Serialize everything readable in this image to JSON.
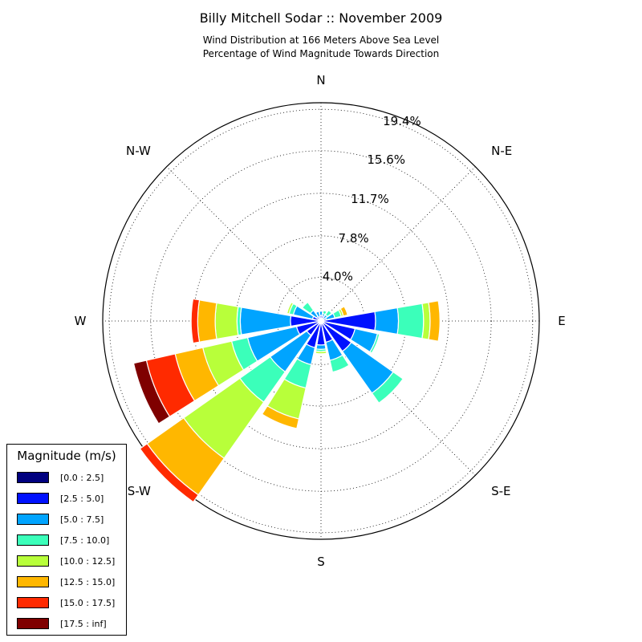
{
  "chart_data": {
    "type": "windrose",
    "title": "Billy Mitchell Sodar :: November 2009",
    "subtitle_lines": [
      "Wind Distribution at 166 Meters Above Sea Level",
      "Percentage of Wind Magnitude Towards Direction"
    ],
    "directions": [
      "N",
      "N-E",
      "E",
      "S-E",
      "S",
      "S-W",
      "W",
      "N-W"
    ],
    "ring_labels": [
      "4.0%",
      "7.8%",
      "11.7%",
      "15.6%",
      "19.4%"
    ],
    "rmax": 20.0,
    "legend_title": "Magnitude (m/s)",
    "bins": [
      {
        "label": "[0.0 : 2.5]",
        "color": "#00007f"
      },
      {
        "label": "[2.5 : 5.0]",
        "color": "#0011ff"
      },
      {
        "label": "[5.0 : 7.5]",
        "color": "#00a4ff"
      },
      {
        "label": "[7.5 : 10.0]",
        "color": "#3bffba"
      },
      {
        "label": "[10.0 : 12.5]",
        "color": "#b8ff3a"
      },
      {
        "label": "[12.5 : 15.0]",
        "color": "#ffb700"
      },
      {
        "label": "[15.0 : 17.5]",
        "color": "#ff2a00"
      },
      {
        "label": "[17.5 : inf]",
        "color": "#7f0000"
      }
    ],
    "sectors": [
      {
        "direction_deg": 0.0,
        "values": [
          0.0,
          0.5,
          0.4,
          0.0,
          0.0,
          0.0,
          0.0,
          0.0
        ]
      },
      {
        "direction_deg": 22.5,
        "values": [
          0.0,
          0.5,
          0.2,
          0.3,
          0.0,
          0.0,
          0.0,
          0.0
        ]
      },
      {
        "direction_deg": 45.0,
        "values": [
          0.0,
          0.2,
          0.5,
          0.5,
          0.0,
          0.0,
          0.0,
          0.0
        ]
      },
      {
        "direction_deg": 67.5,
        "values": [
          0.0,
          0.5,
          0.8,
          0.6,
          0.2,
          0.4,
          0.0,
          0.0
        ]
      },
      {
        "direction_deg": 90.0,
        "values": [
          0.0,
          5.0,
          2.1,
          2.3,
          0.6,
          0.9,
          0.0,
          0.0
        ]
      },
      {
        "direction_deg": 112.5,
        "values": [
          0.0,
          3.2,
          2.1,
          0.2,
          0.0,
          0.0,
          0.0,
          0.0
        ]
      },
      {
        "direction_deg": 135.0,
        "values": [
          0.0,
          3.4,
          4.7,
          1.1,
          0.0,
          0.0,
          0.0,
          0.0
        ]
      },
      {
        "direction_deg": 157.5,
        "values": [
          0.0,
          2.0,
          1.7,
          1.1,
          0.0,
          0.0,
          0.0,
          0.0
        ]
      },
      {
        "direction_deg": 180.0,
        "values": [
          0.0,
          2.2,
          0.4,
          0.2,
          0.2,
          0.0,
          0.0,
          0.0
        ]
      },
      {
        "direction_deg": 202.5,
        "values": [
          0.0,
          2.5,
          1.6,
          2.2,
          2.9,
          0.9,
          0.0,
          0.0
        ]
      },
      {
        "direction_deg": 225.0,
        "values": [
          0.0,
          1.6,
          4.1,
          3.4,
          6.3,
          4.1,
          0.8,
          0.0
        ]
      },
      {
        "direction_deg": 247.5,
        "values": [
          0.0,
          2.3,
          4.6,
          1.5,
          2.7,
          2.6,
          2.7,
          1.2
        ]
      },
      {
        "direction_deg": 270.0,
        "values": [
          0.0,
          2.8,
          4.6,
          0.3,
          2.0,
          1.6,
          0.6,
          0.0
        ]
      },
      {
        "direction_deg": 292.5,
        "values": [
          0.0,
          0.8,
          1.8,
          0.4,
          0.2,
          0.0,
          0.0,
          0.0
        ]
      },
      {
        "direction_deg": 315.0,
        "values": [
          0.0,
          0.5,
          0.7,
          0.9,
          0.0,
          0.0,
          0.0,
          0.0
        ]
      },
      {
        "direction_deg": 337.5,
        "values": [
          0.0,
          0.4,
          0.5,
          0.0,
          0.0,
          0.0,
          0.0,
          0.0
        ]
      }
    ]
  }
}
